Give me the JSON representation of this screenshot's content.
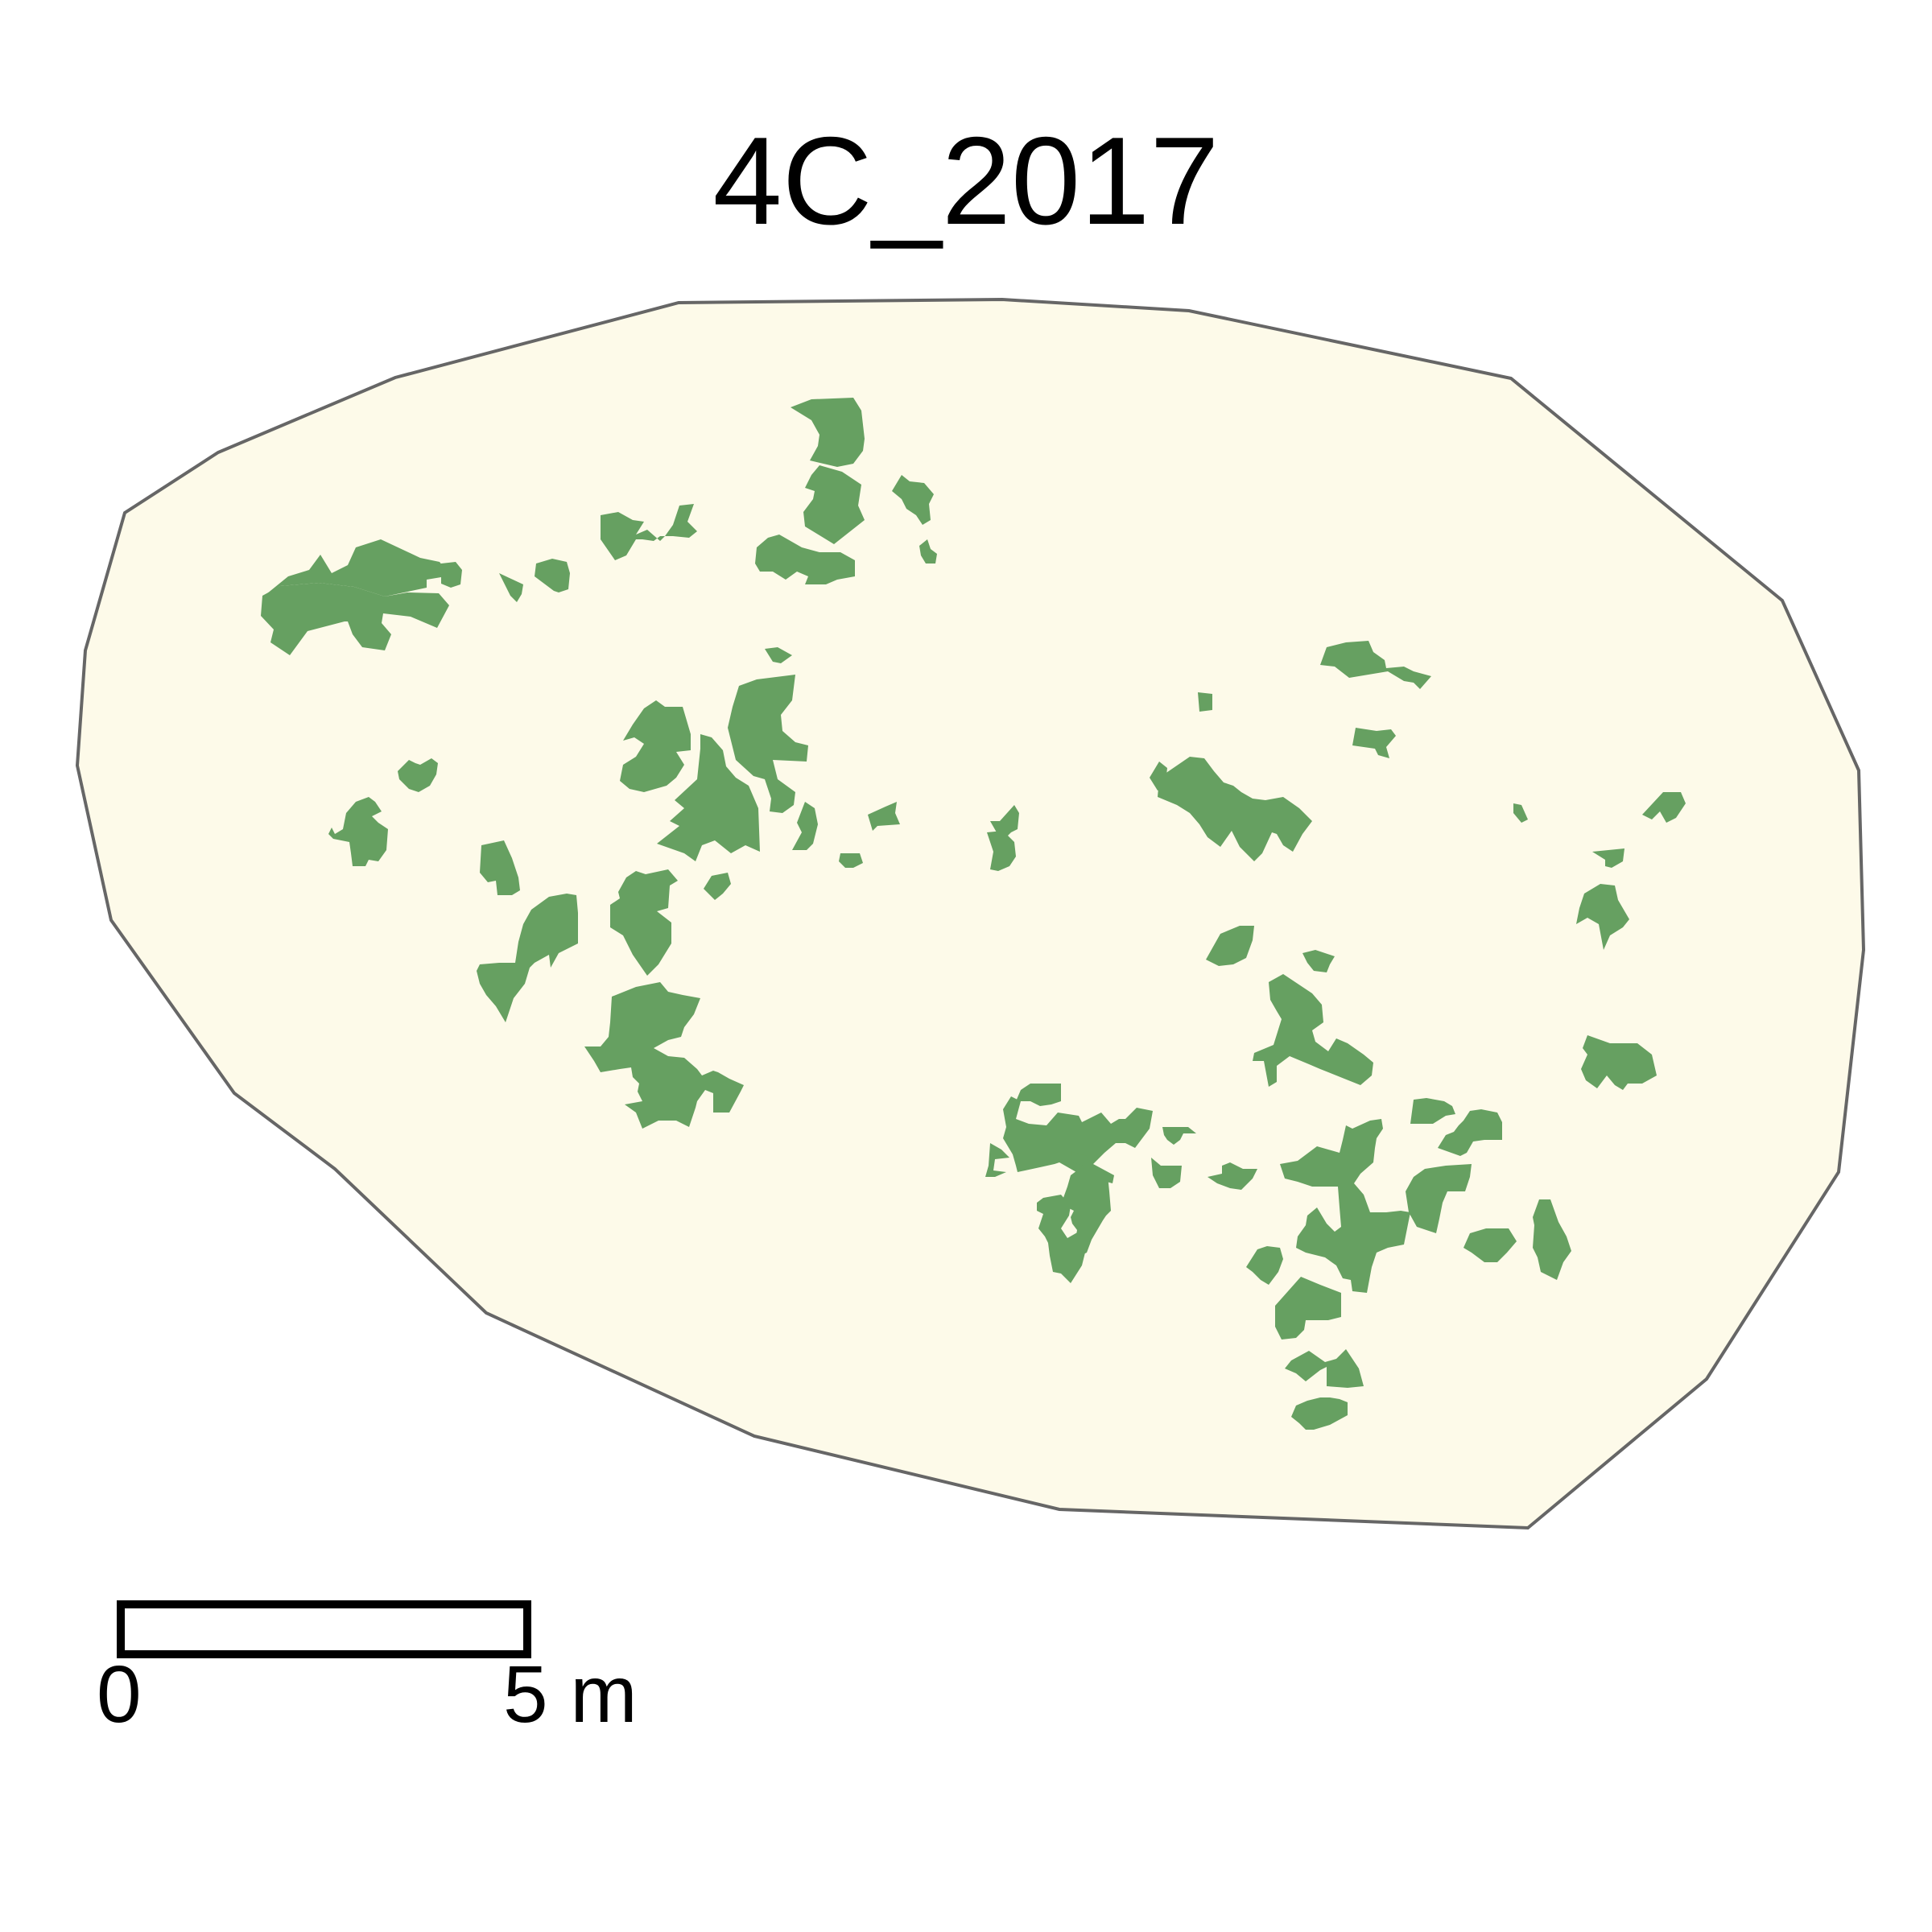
{
  "title": "4C_2017",
  "colors": {
    "plot_fill": "#fdfae9",
    "plot_outline": "#666666",
    "vegetation_fill": "#66a061",
    "scale_bar_stroke": "#000000",
    "scale_bar_fill": "#ffffff"
  },
  "layers": [
    {
      "name": "plot-boundary",
      "type": "polygon",
      "count": 1
    },
    {
      "name": "vegetation-patches",
      "type": "polygon",
      "count": 60
    }
  ],
  "scale_bar": {
    "start_label": "0",
    "end_label": "5 m",
    "length_value": 5,
    "unit": "m"
  }
}
